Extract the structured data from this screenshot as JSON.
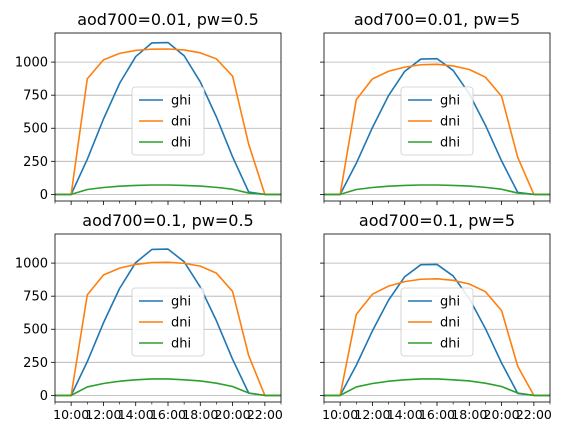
{
  "chart_data": [
    {
      "type": "line",
      "title": "aod700=0.01, pw=0.5",
      "xlabel": "",
      "ylabel": "",
      "xlim": [
        "09:00",
        "23:00"
      ],
      "ylim": [
        -50,
        1220
      ],
      "yticks": [
        0,
        250,
        500,
        750,
        1000
      ],
      "xticks": [
        "10:00",
        "12:00",
        "14:00",
        "16:00",
        "18:00",
        "20:00",
        "22:00"
      ],
      "show_xtick_labels": false,
      "show_ytick_labels": true,
      "grid": "y",
      "legend": "center",
      "x": [
        "09:00",
        "10:00",
        "11:00",
        "12:00",
        "13:00",
        "14:00",
        "15:00",
        "16:00",
        "17:00",
        "18:00",
        "19:00",
        "20:00",
        "21:00",
        "22:00",
        "23:00"
      ],
      "series": [
        {
          "name": "ghi",
          "color": "#1f77b4",
          "values": [
            0,
            0,
            265,
            569,
            839,
            1042,
            1145,
            1148,
            1048,
            850,
            585,
            284,
            18,
            0,
            0
          ]
        },
        {
          "name": "dni",
          "color": "#ff7f0e",
          "values": [
            0,
            0,
            874,
            1017,
            1066,
            1088,
            1098,
            1099,
            1092,
            1070,
            1024,
            894,
            378,
            0,
            0
          ]
        },
        {
          "name": "dhi",
          "color": "#2ca02c",
          "values": [
            0,
            0,
            37,
            52,
            62,
            68,
            71,
            71,
            68,
            63,
            53,
            39,
            10,
            0,
            0
          ]
        }
      ]
    },
    {
      "type": "line",
      "title": "aod700=0.01, pw=5",
      "xlabel": "",
      "ylabel": "",
      "xlim": [
        "09:00",
        "23:00"
      ],
      "ylim": [
        -50,
        1220
      ],
      "yticks": [
        0,
        250,
        500,
        750,
        1000
      ],
      "xticks": [
        "10:00",
        "12:00",
        "14:00",
        "16:00",
        "18:00",
        "20:00",
        "22:00"
      ],
      "show_xtick_labels": false,
      "show_ytick_labels": false,
      "grid": "y",
      "legend": "center",
      "x": [
        "09:00",
        "10:00",
        "11:00",
        "12:00",
        "13:00",
        "14:00",
        "15:00",
        "16:00",
        "17:00",
        "18:00",
        "19:00",
        "20:00",
        "21:00",
        "22:00",
        "23:00"
      ],
      "series": [
        {
          "name": "ghi",
          "color": "#1f77b4",
          "values": [
            0,
            0,
            235,
            505,
            747,
            930,
            1023,
            1026,
            937,
            760,
            523,
            253,
            15,
            0,
            0
          ]
        },
        {
          "name": "dni",
          "color": "#ff7f0e",
          "values": [
            0,
            0,
            716,
            873,
            931,
            962,
            980,
            983,
            971,
            944,
            886,
            742,
            280,
            0,
            0
          ]
        },
        {
          "name": "dhi",
          "color": "#2ca02c",
          "values": [
            0,
            0,
            37,
            52,
            62,
            68,
            71,
            71,
            68,
            63,
            53,
            39,
            10,
            0,
            0
          ]
        }
      ]
    },
    {
      "type": "line",
      "title": "aod700=0.1, pw=0.5",
      "xlabel": "",
      "ylabel": "",
      "xlim": [
        "09:00",
        "23:00"
      ],
      "ylim": [
        -50,
        1220
      ],
      "yticks": [
        0,
        250,
        500,
        750,
        1000
      ],
      "xticks": [
        "10:00",
        "12:00",
        "14:00",
        "16:00",
        "18:00",
        "20:00",
        "22:00"
      ],
      "show_xtick_labels": true,
      "show_ytick_labels": true,
      "grid": "y",
      "legend": "center",
      "x": [
        "09:00",
        "10:00",
        "11:00",
        "12:00",
        "13:00",
        "14:00",
        "15:00",
        "16:00",
        "17:00",
        "18:00",
        "19:00",
        "20:00",
        "21:00",
        "22:00",
        "23:00"
      ],
      "series": [
        {
          "name": "ghi",
          "color": "#1f77b4",
          "values": [
            0,
            0,
            255,
            548,
            808,
            1004,
            1103,
            1106,
            1010,
            819,
            564,
            273,
            17,
            0,
            0
          ]
        },
        {
          "name": "dni",
          "color": "#ff7f0e",
          "values": [
            0,
            0,
            760,
            910,
            962,
            990,
            1004,
            1006,
            998,
            977,
            924,
            786,
            300,
            0,
            0
          ]
        },
        {
          "name": "dhi",
          "color": "#2ca02c",
          "values": [
            0,
            0,
            64,
            90,
            107,
            118,
            124,
            124,
            118,
            109,
            92,
            67,
            18,
            0,
            0
          ]
        }
      ]
    },
    {
      "type": "line",
      "title": "aod700=0.1, pw=5",
      "xlabel": "",
      "ylabel": "",
      "xlim": [
        "09:00",
        "23:00"
      ],
      "ylim": [
        -50,
        1220
      ],
      "yticks": [
        0,
        250,
        500,
        750,
        1000
      ],
      "xticks": [
        "10:00",
        "12:00",
        "14:00",
        "16:00",
        "18:00",
        "20:00",
        "22:00"
      ],
      "show_xtick_labels": true,
      "show_ytick_labels": false,
      "grid": "y",
      "legend": "center",
      "x": [
        "09:00",
        "10:00",
        "11:00",
        "12:00",
        "13:00",
        "14:00",
        "15:00",
        "16:00",
        "17:00",
        "18:00",
        "19:00",
        "20:00",
        "21:00",
        "22:00",
        "23:00"
      ],
      "series": [
        {
          "name": "ghi",
          "color": "#1f77b4",
          "values": [
            0,
            0,
            228,
            488,
            720,
            897,
            988,
            990,
            903,
            732,
            505,
            245,
            15,
            0,
            0
          ]
        },
        {
          "name": "dni",
          "color": "#ff7f0e",
          "values": [
            0,
            0,
            612,
            765,
            826,
            860,
            878,
            881,
            870,
            842,
            784,
            641,
            220,
            0,
            0
          ]
        },
        {
          "name": "dhi",
          "color": "#2ca02c",
          "values": [
            0,
            0,
            64,
            90,
            107,
            118,
            124,
            124,
            118,
            109,
            92,
            67,
            18,
            0,
            0
          ]
        }
      ]
    }
  ]
}
